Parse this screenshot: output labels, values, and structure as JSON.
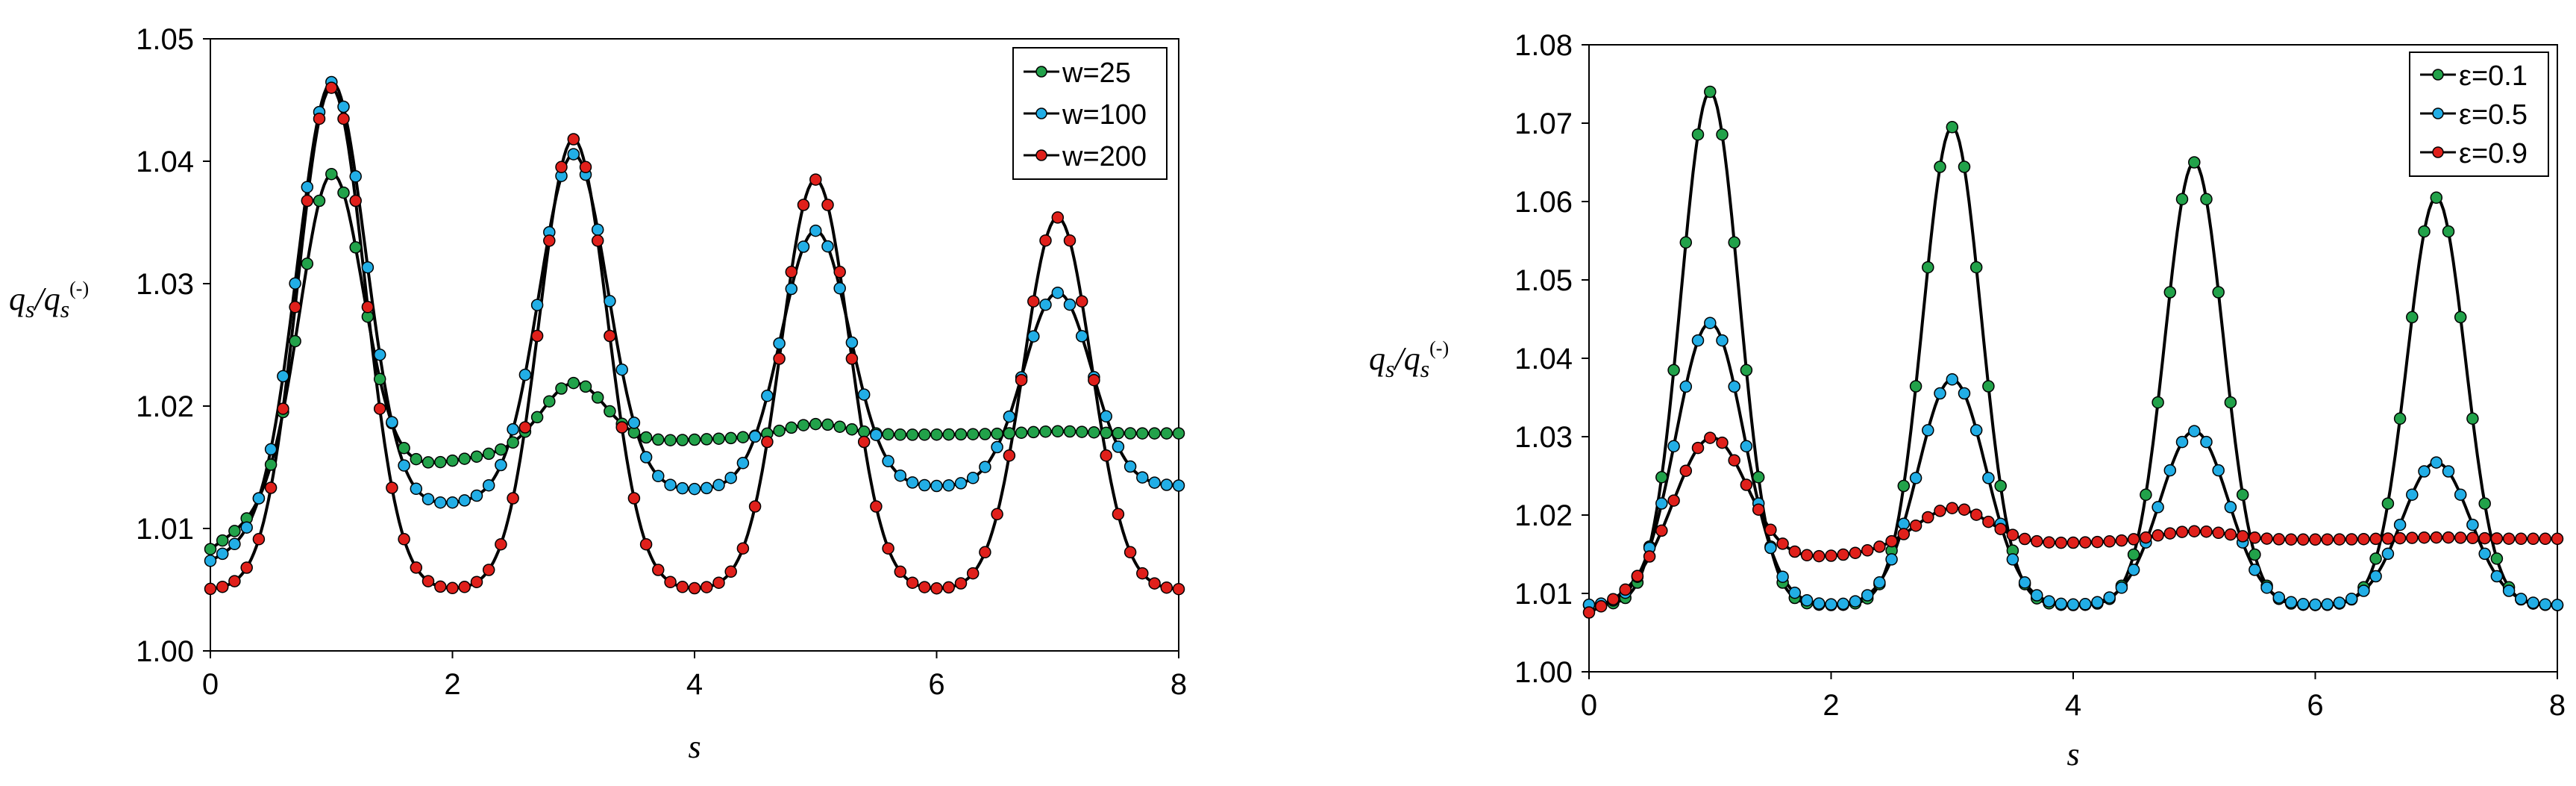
{
  "chart_data": [
    {
      "type": "line",
      "title": "",
      "xlabel": "s",
      "ylabel_main": "q",
      "ylabel_sub": "s",
      "ylabel_den_main": "q",
      "ylabel_den_sub": "s",
      "ylabel_den_sup": "(-)",
      "ylabel_slash": "/",
      "xlim": [
        0,
        8
      ],
      "ylim": [
        1.0,
        1.05
      ],
      "xticks": [
        "0",
        "2",
        "4",
        "6",
        "8"
      ],
      "yticks": [
        "1.00",
        "1.01",
        "1.02",
        "1.03",
        "1.04",
        "1.05"
      ],
      "legend_position": "top-right",
      "series": [
        {
          "name": "w=25",
          "color": "#22a24a",
          "amps": [
            0.0258,
            0.0052,
            0.001,
            0.0002
          ],
          "base": 1.0178,
          "width": 0.26,
          "decay": 0.0095
        },
        {
          "name": "w=100",
          "color": "#22aee6",
          "amps": [
            0.036,
            0.0278,
            0.021,
            0.0158
          ],
          "base": 1.0135,
          "width": 0.28,
          "decay": 0.0062
        },
        {
          "name": "w=200",
          "color": "#e0201b",
          "amps": [
            0.041,
            0.0368,
            0.0335,
            0.0304
          ],
          "base": 1.005,
          "width": 0.28,
          "decay": 0.0
        }
      ]
    },
    {
      "type": "line",
      "title": "",
      "xlabel": "s",
      "ylabel_main": "q",
      "ylabel_sub": "s",
      "ylabel_den_main": "q",
      "ylabel_den_sub": "s",
      "ylabel_den_sup": "(-)",
      "ylabel_slash": "/",
      "xlim": [
        0,
        8
      ],
      "ylim": [
        1.0,
        1.08
      ],
      "xticks": [
        "0",
        "2",
        "4",
        "6",
        "8"
      ],
      "yticks": [
        "1.00",
        "1.01",
        "1.02",
        "1.03",
        "1.04",
        "1.05",
        "1.06",
        "1.07",
        "1.08"
      ],
      "legend_position": "top-right",
      "series": [
        {
          "name": "ε=0.1",
          "color": "#22a24a",
          "amps": [
            0.0655,
            0.061,
            0.0565,
            0.052
          ],
          "base": 1.0085,
          "width": 0.24,
          "decay": 0.0
        },
        {
          "name": "ε=0.5",
          "color": "#22aee6",
          "amps": [
            0.036,
            0.0288,
            0.0222,
            0.0182
          ],
          "base": 1.0085,
          "width": 0.28,
          "decay": 0.0
        },
        {
          "name": "ε=0.9",
          "color": "#e0201b",
          "amps": [
            0.0175,
            0.005,
            0.0012,
            0.0002
          ],
          "base": 1.017,
          "width": 0.3,
          "decay": 0.0095
        }
      ]
    }
  ]
}
